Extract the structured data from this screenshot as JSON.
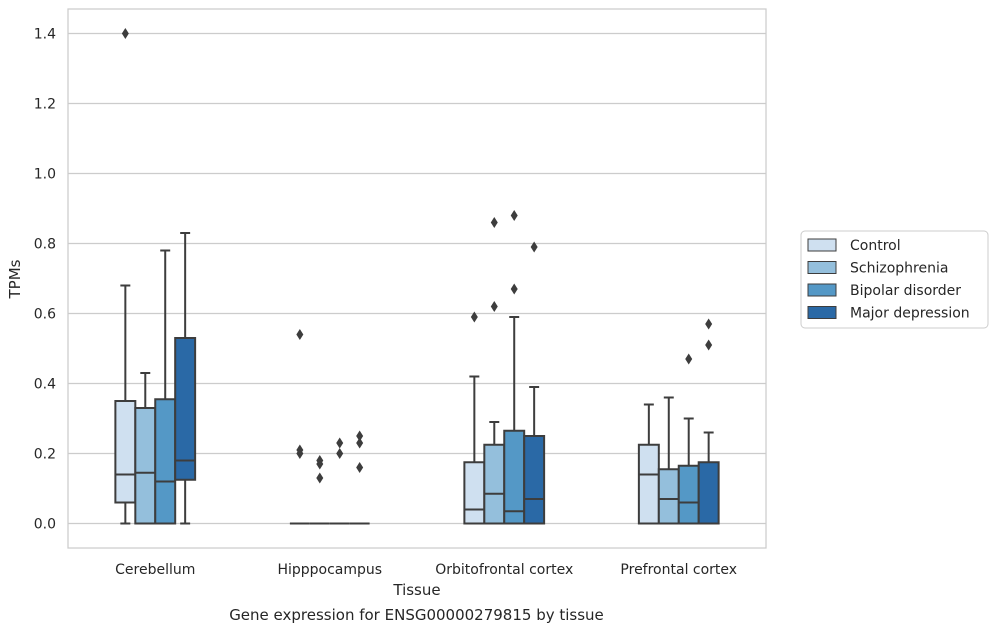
{
  "chart_data": {
    "type": "box",
    "xlabel": "Tissue",
    "ylabel": "TPMs",
    "caption": "Gene expression for ENSG00000279815 by tissue",
    "ylim": [
      -0.07,
      1.47
    ],
    "yticks": [
      0.0,
      0.2,
      0.4,
      0.6,
      0.8,
      1.0,
      1.2,
      1.4
    ],
    "grid": "horizontal",
    "legend_position": "right",
    "categories": [
      "Cerebellum",
      "Hipppocampus",
      "Orbitofrontal cortex",
      "Prefrontal cortex"
    ],
    "series": [
      {
        "name": "Control",
        "color": "#cfe0f0",
        "boxes": [
          {
            "whislo": 0.0,
            "q1": 0.06,
            "med": 0.14,
            "q3": 0.35,
            "whishi": 0.68,
            "fliers": [
              1.4
            ]
          },
          {
            "whislo": 0.0,
            "q1": 0.0,
            "med": 0.0,
            "q3": 0.0,
            "whishi": 0.0,
            "fliers": [
              0.2,
              0.21,
              0.54
            ]
          },
          {
            "whislo": 0.0,
            "q1": 0.0,
            "med": 0.04,
            "q3": 0.175,
            "whishi": 0.42,
            "fliers": [
              0.59
            ]
          },
          {
            "whislo": 0.0,
            "q1": 0.0,
            "med": 0.14,
            "q3": 0.225,
            "whishi": 0.34,
            "fliers": []
          }
        ]
      },
      {
        "name": "Schizophrenia",
        "color": "#94bfdc",
        "boxes": [
          {
            "whislo": 0.0,
            "q1": 0.0,
            "med": 0.145,
            "q3": 0.33,
            "whishi": 0.43,
            "fliers": []
          },
          {
            "whislo": 0.0,
            "q1": 0.0,
            "med": 0.0,
            "q3": 0.0,
            "whishi": 0.0,
            "fliers": [
              0.13,
              0.17,
              0.18
            ]
          },
          {
            "whislo": 0.0,
            "q1": 0.0,
            "med": 0.085,
            "q3": 0.225,
            "whishi": 0.29,
            "fliers": [
              0.62,
              0.86
            ]
          },
          {
            "whislo": 0.0,
            "q1": 0.0,
            "med": 0.07,
            "q3": 0.155,
            "whishi": 0.36,
            "fliers": []
          }
        ]
      },
      {
        "name": "Bipolar disorder",
        "color": "#5498c6",
        "boxes": [
          {
            "whislo": 0.0,
            "q1": 0.0,
            "med": 0.12,
            "q3": 0.355,
            "whishi": 0.78,
            "fliers": []
          },
          {
            "whislo": 0.0,
            "q1": 0.0,
            "med": 0.0,
            "q3": 0.0,
            "whishi": 0.0,
            "fliers": [
              0.2,
              0.23
            ]
          },
          {
            "whislo": 0.0,
            "q1": 0.0,
            "med": 0.035,
            "q3": 0.265,
            "whishi": 0.59,
            "fliers": [
              0.67,
              0.88
            ]
          },
          {
            "whislo": 0.0,
            "q1": 0.0,
            "med": 0.06,
            "q3": 0.165,
            "whishi": 0.3,
            "fliers": [
              0.47
            ]
          }
        ]
      },
      {
        "name": "Major depression",
        "color": "#2a69a6",
        "boxes": [
          {
            "whislo": 0.0,
            "q1": 0.125,
            "med": 0.18,
            "q3": 0.53,
            "whishi": 0.83,
            "fliers": []
          },
          {
            "whislo": 0.0,
            "q1": 0.0,
            "med": 0.0,
            "q3": 0.0,
            "whishi": 0.0,
            "fliers": [
              0.16,
              0.23,
              0.25
            ]
          },
          {
            "whislo": 0.0,
            "q1": 0.0,
            "med": 0.07,
            "q3": 0.25,
            "whishi": 0.39,
            "fliers": [
              0.79
            ]
          },
          {
            "whislo": 0.0,
            "q1": 0.0,
            "med": 0.0,
            "q3": 0.175,
            "whishi": 0.26,
            "fliers": [
              0.51,
              0.57
            ]
          }
        ]
      }
    ]
  }
}
